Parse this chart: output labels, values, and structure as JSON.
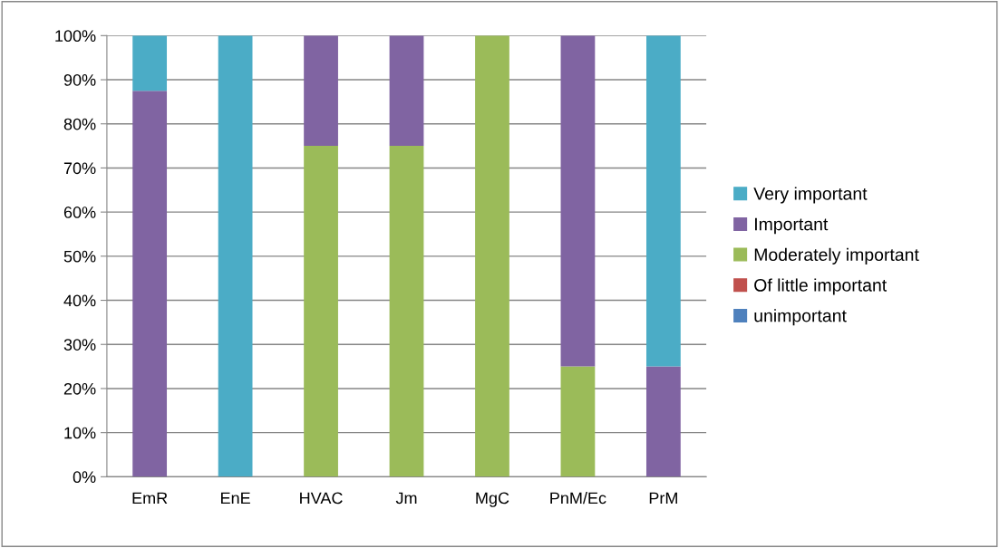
{
  "chart_data": {
    "type": "bar",
    "stacked": true,
    "categories": [
      "EmR",
      "EnE",
      "HVAC",
      "Jm",
      "MgC",
      "PnM/Ec",
      "PrM"
    ],
    "series": [
      {
        "name": "unimportant",
        "color": "#4f81bd",
        "values": [
          0,
          0,
          0,
          0,
          0,
          0,
          0
        ]
      },
      {
        "name": "Of little important",
        "color": "#c0504d",
        "values": [
          0,
          0,
          0,
          0,
          0,
          0,
          0
        ]
      },
      {
        "name": "Moderately important",
        "color": "#9bbb59",
        "values": [
          0,
          0,
          75,
          75,
          100,
          25,
          0
        ]
      },
      {
        "name": "Important",
        "color": "#8064a2",
        "values": [
          87.5,
          0,
          25,
          25,
          0,
          75,
          25
        ]
      },
      {
        "name": "Very important",
        "color": "#4bacc6",
        "values": [
          12.5,
          100,
          0,
          0,
          0,
          0,
          75
        ]
      }
    ],
    "ylim": [
      0,
      100
    ],
    "yticks": [
      {
        "value": 0,
        "label": "0%"
      },
      {
        "value": 10,
        "label": "10%"
      },
      {
        "value": 20,
        "label": "20%"
      },
      {
        "value": 30,
        "label": "30%"
      },
      {
        "value": 40,
        "label": "40%"
      },
      {
        "value": 50,
        "label": "50%"
      },
      {
        "value": 60,
        "label": "60%"
      },
      {
        "value": 70,
        "label": "70%"
      },
      {
        "value": 80,
        "label": "80%"
      },
      {
        "value": 90,
        "label": "90%"
      },
      {
        "value": 100,
        "label": "100%"
      }
    ],
    "grid": "y",
    "legend": "right"
  }
}
